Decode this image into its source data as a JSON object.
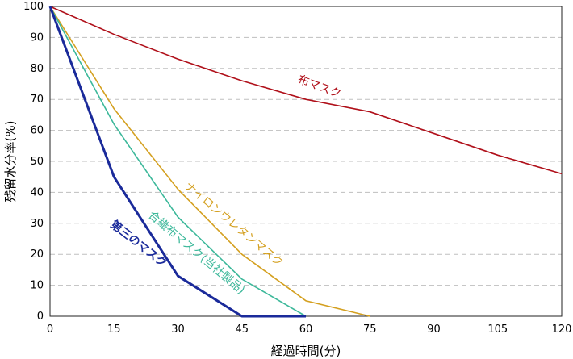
{
  "chart_data": {
    "type": "line",
    "xlabel": "経過時間(分)",
    "ylabel": "残留水分率(%)",
    "xlim": [
      0,
      120
    ],
    "ylim": [
      0,
      100
    ],
    "x_ticks": [
      0,
      15,
      30,
      45,
      60,
      75,
      90,
      105,
      120
    ],
    "y_ticks": [
      0,
      10,
      20,
      30,
      40,
      50,
      60,
      70,
      80,
      90,
      100
    ],
    "grid": "horizontal",
    "series": [
      {
        "name": "布マスク",
        "color": "#b0101a",
        "points": [
          [
            0,
            100
          ],
          [
            15,
            91
          ],
          [
            30,
            83
          ],
          [
            45,
            76
          ],
          [
            60,
            70
          ],
          [
            75,
            66
          ],
          [
            90,
            59
          ],
          [
            105,
            52
          ],
          [
            120,
            46
          ]
        ]
      },
      {
        "name": "ナイロンウレタンマスク",
        "color": "#d4a020",
        "points": [
          [
            0,
            100
          ],
          [
            15,
            67
          ],
          [
            30,
            41
          ],
          [
            45,
            20
          ],
          [
            60,
            5
          ],
          [
            75,
            0
          ]
        ]
      },
      {
        "name": "合繊布マスク(当社製品)",
        "color": "#3cb89a",
        "points": [
          [
            0,
            100
          ],
          [
            15,
            62
          ],
          [
            30,
            32
          ],
          [
            45,
            12
          ],
          [
            60,
            0
          ]
        ]
      },
      {
        "name": "第三のマスク",
        "color": "#1a2a9a",
        "points": [
          [
            0,
            100
          ],
          [
            15,
            45
          ],
          [
            30,
            13
          ],
          [
            45,
            0
          ],
          [
            60,
            0
          ]
        ]
      }
    ]
  }
}
